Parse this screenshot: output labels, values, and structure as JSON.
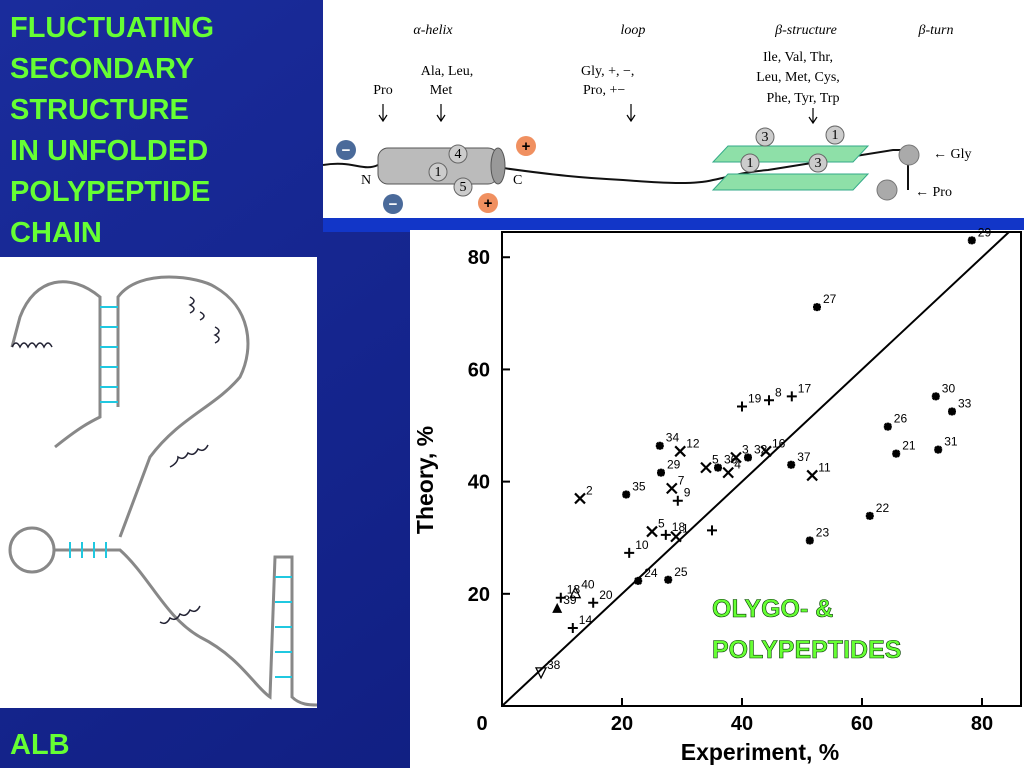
{
  "slide": {
    "title_lines": [
      "FLUCTUATING",
      "SECONDARY",
      "STRUCTURE",
      "IN UNFOLDED",
      "POLYPEPTIDE",
      "CHAIN"
    ],
    "footer": "ALB"
  },
  "diagram": {
    "headers": [
      "α-helix",
      "loop",
      "β-structure",
      "β-turn"
    ],
    "residue_labels": [
      "Pro",
      "Ala, Leu,",
      "Met",
      "Gly,    +,   −,",
      "Pro,      +−",
      "Ile, Val, Thr,",
      "Leu, Met, Cys,",
      "Phe, Tyr, Trp"
    ],
    "termini": [
      "N",
      "C"
    ],
    "helix_positions": [
      "4",
      "1",
      "5"
    ],
    "sheet_positions": [
      "3",
      "1",
      "1",
      "3"
    ],
    "charges": [
      "−",
      "+",
      "−",
      "+"
    ],
    "turn_labels": [
      "← Gly",
      "← Pro"
    ]
  },
  "chart_data": {
    "type": "scatter",
    "xlabel": "Experiment, %",
    "ylabel": "Theory, %",
    "annotation_lines": [
      "OLYGO-  &",
      "POLYPEPTIDES"
    ],
    "color": "#000000",
    "xlim": [
      0,
      86.5
    ],
    "ylim": [
      0,
      84.5
    ],
    "xticks": [
      0,
      20,
      40,
      60,
      80
    ],
    "yticks": [
      20,
      40,
      60,
      80
    ],
    "points": [
      {
        "label": "29",
        "x": 78.3,
        "y": 83.0,
        "marker": "star"
      },
      {
        "label": "27",
        "x": 52.5,
        "y": 71.1,
        "marker": "star"
      },
      {
        "label": "19",
        "x": 40,
        "y": 53.4,
        "marker": "plus"
      },
      {
        "label": "8",
        "x": 44.5,
        "y": 54.5,
        "marker": "plus"
      },
      {
        "label": "17",
        "x": 48.3,
        "y": 55.2,
        "marker": "plus"
      },
      {
        "label": "30",
        "x": 72.3,
        "y": 55.2,
        "marker": "star"
      },
      {
        "label": "26",
        "x": 64.3,
        "y": 49.8,
        "marker": "star"
      },
      {
        "label": "33",
        "x": 75,
        "y": 52.5,
        "marker": "star"
      },
      {
        "label": "21",
        "x": 65.7,
        "y": 45,
        "marker": "star"
      },
      {
        "label": "31",
        "x": 72.7,
        "y": 45.7,
        "marker": "star"
      },
      {
        "label": "34",
        "x": 26.3,
        "y": 46.4,
        "marker": "star"
      },
      {
        "label": "12",
        "x": 29.7,
        "y": 45.4,
        "marker": "cross"
      },
      {
        "label": "16",
        "x": 44,
        "y": 45.4,
        "marker": "cross"
      },
      {
        "label": "3",
        "x": 39,
        "y": 44.3,
        "marker": "cross"
      },
      {
        "label": "32",
        "x": 41,
        "y": 44.3,
        "marker": "star"
      },
      {
        "label": "29",
        "x": 26.5,
        "y": 41.6,
        "marker": "star"
      },
      {
        "label": "5",
        "x": 34,
        "y": 42.5,
        "marker": "cross"
      },
      {
        "label": "4",
        "x": 37.7,
        "y": 41.6,
        "marker": "cross"
      },
      {
        "label": "36",
        "x": 36,
        "y": 42.5,
        "marker": "star"
      },
      {
        "label": "37",
        "x": 48.2,
        "y": 43,
        "marker": "star"
      },
      {
        "label": "11",
        "x": 51.7,
        "y": 41.1,
        "marker": "cross"
      },
      {
        "label": "2",
        "x": 13,
        "y": 37,
        "marker": "cross"
      },
      {
        "label": "35",
        "x": 20.7,
        "y": 37.7,
        "marker": "star"
      },
      {
        "label": "7",
        "x": 28.3,
        "y": 38.8,
        "marker": "cross"
      },
      {
        "label": "9",
        "x": 29.3,
        "y": 36.6,
        "marker": "plus"
      },
      {
        "label": "22",
        "x": 61.3,
        "y": 33.9,
        "marker": "star"
      },
      {
        "label": "5",
        "x": 25,
        "y": 31.1,
        "marker": "cross"
      },
      {
        "label": "18",
        "x": 27.3,
        "y": 30.5,
        "marker": "plus"
      },
      {
        "label": "1",
        "x": 29,
        "y": 30.2,
        "marker": "cross"
      },
      {
        "label": null,
        "x": 35,
        "y": 31.3,
        "marker": "plus"
      },
      {
        "label": "23",
        "x": 51.3,
        "y": 29.5,
        "marker": "star"
      },
      {
        "label": "10",
        "x": 21.2,
        "y": 27.3,
        "marker": "plus"
      },
      {
        "label": "24",
        "x": 22.7,
        "y": 22.3,
        "marker": "star"
      },
      {
        "label": "25",
        "x": 27.7,
        "y": 22.5,
        "marker": "star"
      },
      {
        "label": "13",
        "x": 9.8,
        "y": 19.3,
        "marker": "plus"
      },
      {
        "label": "40",
        "x": 12.2,
        "y": 20.2,
        "marker": "triangle-open"
      },
      {
        "label": "20",
        "x": 15.2,
        "y": 18.4,
        "marker": "plus"
      },
      {
        "label": "39",
        "x": 9.2,
        "y": 17.5,
        "marker": "triangle"
      },
      {
        "label": "14",
        "x": 11.8,
        "y": 13.9,
        "marker": "plus"
      },
      {
        "label": "38",
        "x": 6.5,
        "y": 5.9,
        "marker": "triangle-down-open"
      }
    ]
  }
}
